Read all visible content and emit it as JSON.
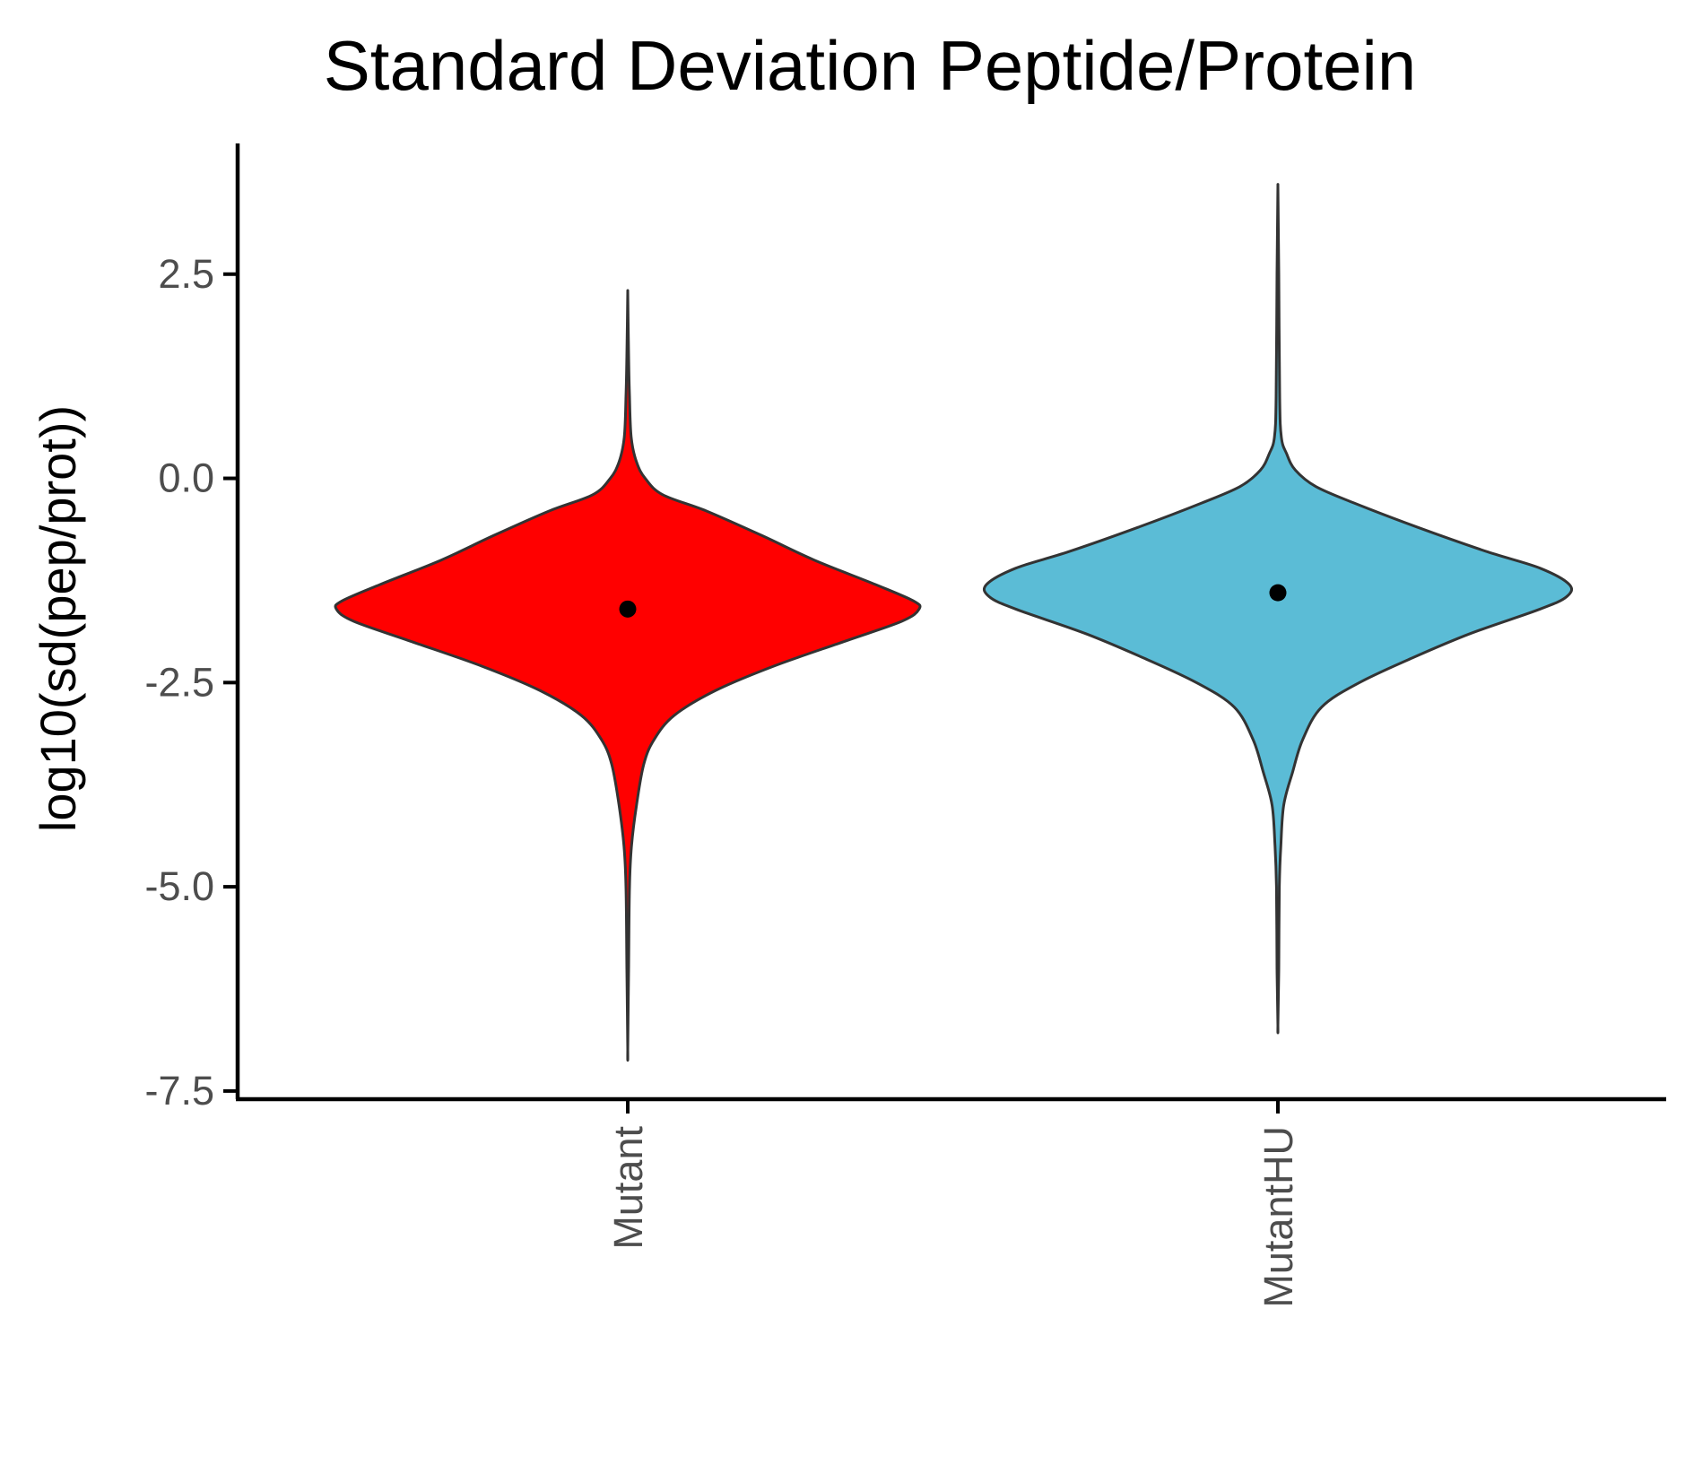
{
  "chart_data": {
    "type": "violin",
    "title": "Standard Deviation Peptide/Protein",
    "xlabel": "",
    "ylabel": "log10(sd(pep/prot))",
    "categories": [
      "Mutant",
      "MutantHU"
    ],
    "ylim": [
      -7.6,
      4.1
    ],
    "yticks": [
      2.5,
      0.0,
      -2.5,
      -5.0,
      -7.5
    ],
    "ytick_labels": [
      "2.5",
      "0.0",
      "-2.5",
      "-5.0",
      "-7.5"
    ],
    "grid": false,
    "series": [
      {
        "category": "Mutant",
        "fill": "#ff0000",
        "min": -7.0,
        "max": 2.3,
        "median": -1.6,
        "density_profile": [
          [
            2.3,
            0.0
          ],
          [
            1.5,
            0.003
          ],
          [
            1.0,
            0.006
          ],
          [
            0.5,
            0.012
          ],
          [
            0.2,
            0.03
          ],
          [
            0.0,
            0.06
          ],
          [
            -0.2,
            0.12
          ],
          [
            -0.4,
            0.27
          ],
          [
            -0.7,
            0.46
          ],
          [
            -1.0,
            0.64
          ],
          [
            -1.3,
            0.85
          ],
          [
            -1.5,
            0.98
          ],
          [
            -1.6,
            1.0
          ],
          [
            -1.75,
            0.94
          ],
          [
            -2.0,
            0.74
          ],
          [
            -2.3,
            0.5
          ],
          [
            -2.6,
            0.3
          ],
          [
            -2.9,
            0.16
          ],
          [
            -3.2,
            0.09
          ],
          [
            -3.5,
            0.055
          ],
          [
            -4.0,
            0.03
          ],
          [
            -4.5,
            0.013
          ],
          [
            -5.0,
            0.006
          ],
          [
            -6.0,
            0.003
          ],
          [
            -7.0,
            0.0
          ]
        ]
      },
      {
        "category": "MutantHU",
        "fill": "#5bbcd6",
        "min": -6.7,
        "max": 3.6,
        "median": -1.4,
        "density_profile": [
          [
            3.6,
            0.0
          ],
          [
            2.5,
            0.003
          ],
          [
            1.0,
            0.006
          ],
          [
            0.5,
            0.012
          ],
          [
            0.3,
            0.03
          ],
          [
            0.1,
            0.06
          ],
          [
            -0.1,
            0.13
          ],
          [
            -0.3,
            0.26
          ],
          [
            -0.6,
            0.48
          ],
          [
            -0.9,
            0.72
          ],
          [
            -1.1,
            0.9
          ],
          [
            -1.3,
            1.0
          ],
          [
            -1.45,
            0.99
          ],
          [
            -1.6,
            0.9
          ],
          [
            -1.9,
            0.66
          ],
          [
            -2.2,
            0.46
          ],
          [
            -2.5,
            0.28
          ],
          [
            -2.8,
            0.15
          ],
          [
            -3.2,
            0.085
          ],
          [
            -3.6,
            0.05
          ],
          [
            -4.0,
            0.02
          ],
          [
            -4.5,
            0.01
          ],
          [
            -5.0,
            0.005
          ],
          [
            -6.0,
            0.003
          ],
          [
            -6.7,
            0.0
          ]
        ]
      }
    ]
  }
}
